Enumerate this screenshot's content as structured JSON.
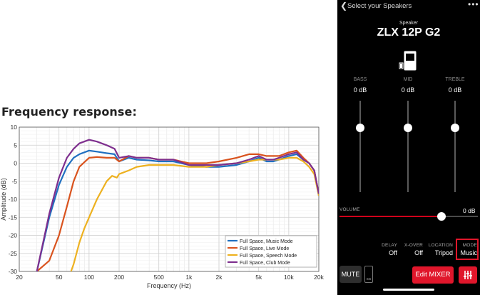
{
  "left": {
    "heading": "Frequency response:"
  },
  "chart_data": {
    "type": "line",
    "title": "",
    "xlabel": "Frequency (Hz)",
    "ylabel": "Amplitude (dB)",
    "xscale": "log",
    "xlim": [
      20,
      20000
    ],
    "ylim": [
      -30,
      10
    ],
    "grid": true,
    "legend_position": "bottom-right",
    "x_tick_labels": [
      "20",
      "50",
      "100",
      "200",
      "500",
      "1k",
      "2k",
      "5k",
      "10k",
      "20k"
    ],
    "x_tick_values": [
      20,
      50,
      100,
      200,
      500,
      1000,
      2000,
      5000,
      10000,
      20000
    ],
    "y_ticks": [
      10,
      5,
      0,
      -5,
      -10,
      -15,
      -20,
      -25,
      -30
    ],
    "series": [
      {
        "name": "Full Space, Music Mode",
        "color": "#1f6fc0",
        "x": [
          30,
          40,
          50,
          60,
          70,
          80,
          100,
          120,
          150,
          180,
          200,
          250,
          300,
          400,
          500,
          700,
          1000,
          1500,
          2000,
          3000,
          4000,
          5000,
          6000,
          7000,
          8000,
          10000,
          12000,
          14000,
          16000,
          18000,
          20000
        ],
        "y": [
          -30,
          -15,
          -6,
          -1,
          1.5,
          2.5,
          3.5,
          3.2,
          2.8,
          2.5,
          0.5,
          1.5,
          1.0,
          0.8,
          0.5,
          0.5,
          -0.5,
          -1.0,
          -1.0,
          -0.5,
          0.5,
          1.5,
          0.5,
          0.5,
          1.0,
          2.0,
          2.5,
          1.0,
          0.0,
          -2.0,
          -9.0
        ]
      },
      {
        "name": "Full Space, Live Mode",
        "color": "#d9531e",
        "x": [
          30,
          40,
          50,
          60,
          70,
          80,
          100,
          120,
          150,
          180,
          200,
          250,
          300,
          400,
          500,
          700,
          1000,
          1500,
          2000,
          3000,
          4000,
          5000,
          6000,
          7000,
          8000,
          10000,
          12000,
          14000,
          16000,
          18000,
          20000
        ],
        "y": [
          -30,
          -27,
          -20,
          -12,
          -5,
          -1,
          1.5,
          1.7,
          1.5,
          1.5,
          0.5,
          2.0,
          1.5,
          1.5,
          1.0,
          1.0,
          0.0,
          0.0,
          0.5,
          1.5,
          2.5,
          2.5,
          2.0,
          2.0,
          2.0,
          3.0,
          3.5,
          1.5,
          0.0,
          -2.0,
          -8.5
        ]
      },
      {
        "name": "Full Space, Speech Mode",
        "color": "#edb120",
        "x": [
          66,
          70,
          80,
          90,
          100,
          120,
          150,
          170,
          190,
          200,
          250,
          300,
          400,
          500,
          700,
          1000,
          1500,
          2000,
          3000,
          4000,
          5000,
          6000,
          7000,
          8000,
          10000,
          12000,
          14000,
          16000,
          18000,
          20000
        ],
        "y": [
          -30,
          -28,
          -22,
          -18,
          -15,
          -10,
          -5,
          -3.5,
          -4,
          -3,
          -2,
          -1,
          -0.5,
          -0.5,
          -0.5,
          -1.0,
          -1.0,
          -0.5,
          0.0,
          0.5,
          1.0,
          1.0,
          1.0,
          1.0,
          1.5,
          1.5,
          0.5,
          -1.0,
          -3.0,
          -9.0
        ]
      },
      {
        "name": "Full Space, Club Mode",
        "color": "#7e2f8e",
        "x": [
          30,
          40,
          50,
          60,
          70,
          80,
          100,
          120,
          150,
          180,
          200,
          250,
          300,
          400,
          500,
          700,
          1000,
          1500,
          2000,
          3000,
          4000,
          5000,
          6000,
          7000,
          8000,
          10000,
          12000,
          14000,
          16000,
          18000,
          20000
        ],
        "y": [
          -30,
          -14,
          -4,
          1.5,
          4,
          5.5,
          6.5,
          6,
          5,
          4,
          1.5,
          2.0,
          1.5,
          1.5,
          1.0,
          1.0,
          -0.5,
          -0.5,
          -0.5,
          0.0,
          1.0,
          2.0,
          1.0,
          1.0,
          1.5,
          2.5,
          3.0,
          1.0,
          0.0,
          -2.0,
          -8.5
        ]
      }
    ]
  },
  "phone": {
    "nav_title": "Select your Speakers",
    "back_icon": "chevron-left-icon",
    "more_icon": "more-dots-icon",
    "speaker_label": "Speaker",
    "speaker_name": "ZLX 12P G2",
    "speaker_icon": "speaker-icon",
    "eq": [
      {
        "label": "BASS",
        "value": "0 dB",
        "level_db": 0
      },
      {
        "label": "MID",
        "value": "0 dB",
        "level_db": 0
      },
      {
        "label": "TREBLE",
        "value": "0 dB",
        "level_db": 0
      }
    ],
    "volume": {
      "label": "VOLUME",
      "value": "0 dB",
      "level_fraction": 0.73
    },
    "stats": [
      {
        "label": "DELAY",
        "value": "Off"
      },
      {
        "label": "X-OVER",
        "value": "Off"
      },
      {
        "label": "LOCATION",
        "value": "Tripod"
      },
      {
        "label": "MODE",
        "value": "Music"
      }
    ],
    "mute_label": "MUTE",
    "sg_label": "SG",
    "edit_mixer_label": "Edit MIXER",
    "eq_button_icon": "sliders-icon",
    "accent_color": "#e0162b"
  }
}
